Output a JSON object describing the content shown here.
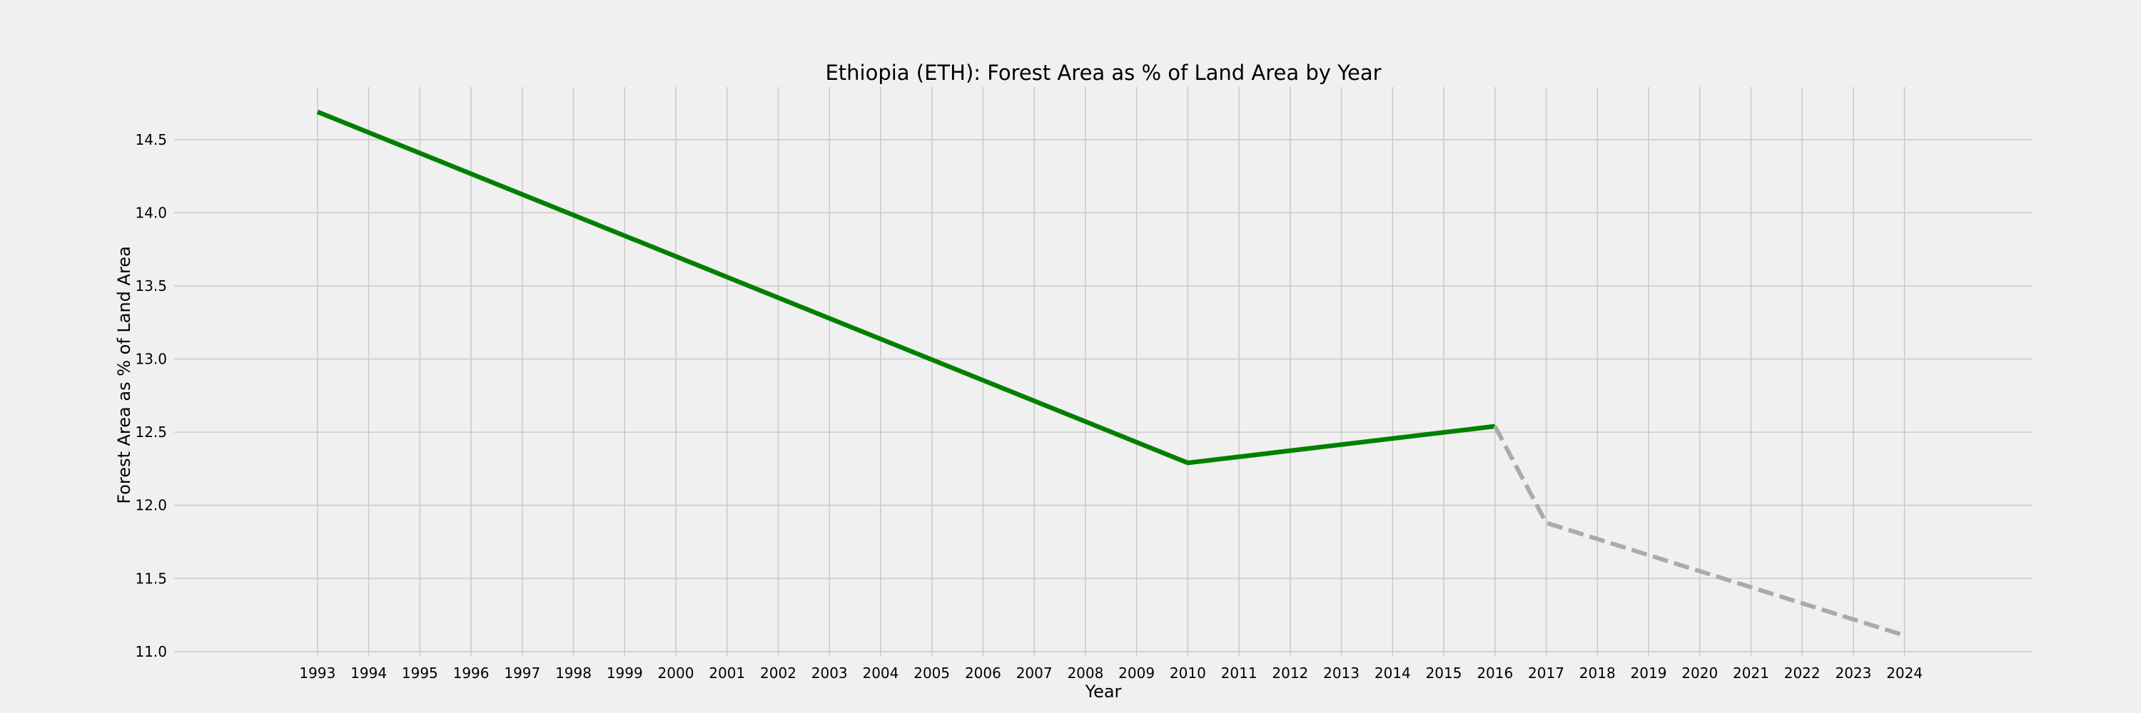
{
  "chart_data": {
    "type": "line",
    "title": "Ethiopia (ETH): Forest Area as % of Land Area by Year",
    "xlabel": "Year",
    "ylabel": "Forest Area as % of Land Area",
    "xlim": [
      1990.2,
      2026.5
    ],
    "ylim": [
      10.97,
      14.86
    ],
    "grid": true,
    "legend": "none",
    "x_ticks": [
      1993,
      1994,
      1995,
      1996,
      1997,
      1998,
      1999,
      2000,
      2001,
      2002,
      2003,
      2004,
      2005,
      2006,
      2007,
      2008,
      2009,
      2010,
      2011,
      2012,
      2013,
      2014,
      2015,
      2016,
      2017,
      2018,
      2019,
      2020,
      2021,
      2022,
      2023,
      2024
    ],
    "y_ticks": [
      "11.0",
      "11.5",
      "12.0",
      "12.5",
      "13.0",
      "13.5",
      "14.0",
      "14.5"
    ],
    "series": [
      {
        "style": "solid",
        "color": "#008000",
        "points": [
          {
            "x": 1993,
            "y": 14.69
          },
          {
            "x": 2010,
            "y": 12.29
          },
          {
            "x": 2016,
            "y": 12.54
          }
        ]
      },
      {
        "style": "dashed",
        "color": "#aaaaaa",
        "points": [
          {
            "x": 2016,
            "y": 12.54
          },
          {
            "x": 2017,
            "y": 11.88
          },
          {
            "x": 2018,
            "y": 11.77
          },
          {
            "x": 2019,
            "y": 11.66
          },
          {
            "x": 2020,
            "y": 11.55
          },
          {
            "x": 2021,
            "y": 11.44
          },
          {
            "x": 2022,
            "y": 11.33
          },
          {
            "x": 2023,
            "y": 11.22
          },
          {
            "x": 2024,
            "y": 11.11
          }
        ]
      }
    ]
  }
}
